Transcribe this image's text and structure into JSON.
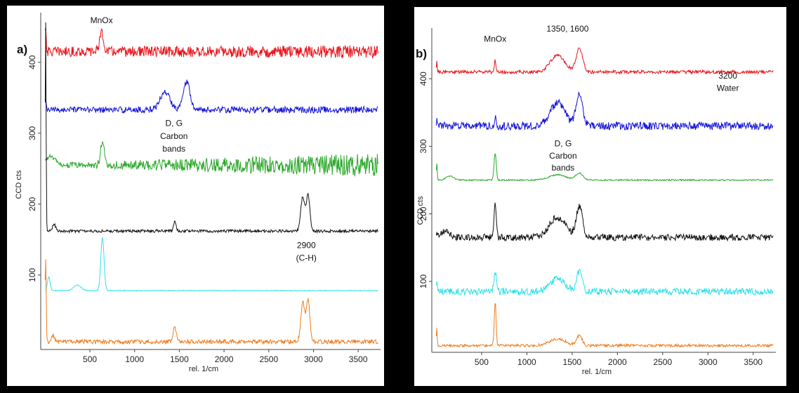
{
  "chart_data": [
    {
      "panel_label": "a)",
      "type": "line",
      "xlabel": "rel. 1/cm",
      "ylabel": "CCD cts",
      "xlim": [
        -50,
        3750
      ],
      "ylim": [
        -5,
        470
      ],
      "x_ticks": [
        500,
        1000,
        1500,
        2000,
        2500,
        3000,
        3500
      ],
      "y_ticks": [
        100,
        200,
        300,
        400
      ],
      "series": [
        {
          "color": "#e8141b",
          "offset": 415,
          "noise": 7,
          "noise_ramp": 2,
          "peaks": [
            [
              630,
              25,
              25
            ],
            [
              5,
              40,
              6
            ]
          ]
        },
        {
          "color": "#1414d8",
          "offset": 333,
          "noise": 4,
          "noise_ramp": 1,
          "peaks": [
            [
              1340,
              25,
              55
            ],
            [
              1580,
              40,
              40
            ],
            [
              5,
              12,
              6
            ]
          ]
        },
        {
          "color": "#2aa82a",
          "offset": 255,
          "noise": 3,
          "noise_ramp": 14,
          "peaks": [
            [
              640,
              30,
              22
            ],
            [
              60,
              12,
              50
            ]
          ]
        },
        {
          "color": "#111111",
          "offset": 162,
          "noise": 2,
          "noise_ramp": 0,
          "peaks": [
            [
              5,
              300,
              5
            ],
            [
              100,
              10,
              18
            ],
            [
              1450,
              13,
              14
            ],
            [
              2880,
              48,
              22
            ],
            [
              2940,
              50,
              20
            ]
          ]
        },
        {
          "color": "#2fe0e8",
          "offset": 78,
          "noise": 0.6,
          "noise_ramp": 0,
          "peaks": [
            [
              640,
              75,
              18
            ],
            [
              360,
              8,
              40
            ],
            [
              40,
              20,
              15
            ]
          ]
        },
        {
          "color": "#f07d1e",
          "offset": 6,
          "noise": 3,
          "noise_ramp": 0,
          "peaks": [
            [
              5,
              120,
              6
            ],
            [
              1450,
              20,
              18
            ],
            [
              2880,
              55,
              22
            ],
            [
              2940,
              58,
              20
            ],
            [
              90,
              10,
              15
            ]
          ]
        }
      ],
      "annotations": [
        {
          "text": "MnOx",
          "x": 630,
          "y": 455
        },
        {
          "text": "D, G",
          "x": 1440,
          "y": 310
        },
        {
          "text": "Carbon",
          "x": 1440,
          "y": 292
        },
        {
          "text": "bands",
          "x": 1440,
          "y": 274
        },
        {
          "text": "2900",
          "x": 2920,
          "y": 138
        },
        {
          "text": "(C-H)",
          "x": 2920,
          "y": 120
        }
      ]
    },
    {
      "panel_label": "b)",
      "type": "line",
      "xlabel": "rel. 1/cm",
      "ylabel": "CCD cts",
      "xlim": [
        -50,
        3750
      ],
      "ylim": [
        -5,
        475
      ],
      "x_ticks": [
        500,
        1000,
        1500,
        2000,
        2500,
        3000,
        3500
      ],
      "y_ticks": [
        100,
        200,
        300,
        400
      ],
      "series": [
        {
          "color": "#e8141b",
          "offset": 410,
          "noise": 2.5,
          "noise_ramp": 0,
          "peaks": [
            [
              650,
              18,
              8
            ],
            [
              1340,
              25,
              80
            ],
            [
              1580,
              35,
              35
            ],
            [
              5,
              15,
              5
            ]
          ]
        },
        {
          "color": "#1414d8",
          "offset": 330,
          "noise": 6,
          "noise_ramp": 0,
          "peaks": [
            [
              650,
              12,
              10
            ],
            [
              1340,
              35,
              80
            ],
            [
              1580,
              50,
              35
            ],
            [
              5,
              10,
              5
            ]
          ]
        },
        {
          "color": "#2aa82a",
          "offset": 250,
          "noise": 1,
          "noise_ramp": 0,
          "peaks": [
            [
              650,
              40,
              12
            ],
            [
              1340,
              8,
              90
            ],
            [
              1580,
              10,
              40
            ],
            [
              5,
              25,
              5
            ],
            [
              150,
              6,
              40
            ]
          ]
        },
        {
          "color": "#111111",
          "offset": 165,
          "noise": 5,
          "noise_ramp": 0,
          "peaks": [
            [
              650,
              50,
              12
            ],
            [
              1340,
              30,
              90
            ],
            [
              1580,
              45,
              35
            ],
            [
              100,
              10,
              40
            ],
            [
              5,
              10,
              5
            ]
          ]
        },
        {
          "color": "#2fe0e8",
          "offset": 85,
          "noise": 5,
          "noise_ramp": 0,
          "peaks": [
            [
              650,
              30,
              14
            ],
            [
              1340,
              20,
              80
            ],
            [
              1580,
              30,
              30
            ],
            [
              5,
              20,
              5
            ]
          ]
        },
        {
          "color": "#f07d1e",
          "offset": 5,
          "noise": 2,
          "noise_ramp": 0,
          "peaks": [
            [
              650,
              65,
              10
            ],
            [
              1340,
              10,
              90
            ],
            [
              1580,
              15,
              30
            ],
            [
              5,
              25,
              5
            ]
          ]
        }
      ],
      "annotations": [
        {
          "text": "MnOx",
          "x": 650,
          "y": 455
        },
        {
          "text": "1350, 1600",
          "x": 1450,
          "y": 470
        },
        {
          "text": "3200",
          "x": 3220,
          "y": 400
        },
        {
          "text": "Water",
          "x": 3220,
          "y": 382
        },
        {
          "text": "D, G",
          "x": 1400,
          "y": 300
        },
        {
          "text": "Carbon",
          "x": 1400,
          "y": 282
        },
        {
          "text": "bands",
          "x": 1400,
          "y": 264
        }
      ]
    }
  ]
}
